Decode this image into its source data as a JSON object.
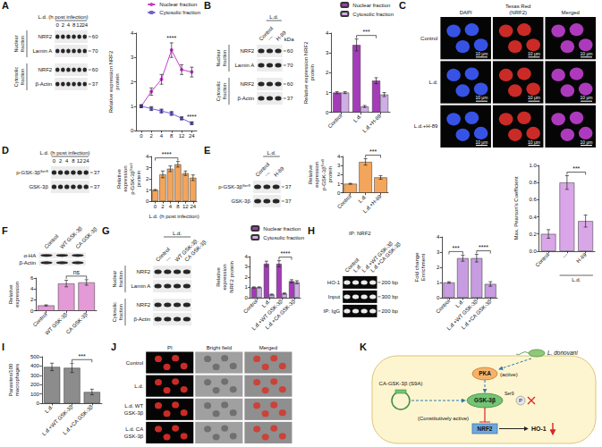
{
  "chart_data": [
    {
      "panel": "A",
      "type": "line",
      "categories": [
        "0",
        "2",
        "4",
        "8",
        "12",
        "24"
      ],
      "ylabel": "Relative expression NRF2 protein",
      "ylim": [
        0,
        4
      ],
      "yticks": [
        0,
        1,
        2,
        3,
        4
      ],
      "legend": "top-right",
      "series": [
        {
          "name": "Nuclear fraction",
          "color": "#c13fc9",
          "marker": "circle",
          "values": [
            1,
            1.6,
            2.1,
            3.3,
            2.5,
            2.4
          ],
          "errors": [
            0.05,
            0.15,
            0.2,
            0.3,
            0.2,
            0.2
          ]
        },
        {
          "name": "Cytosolic fraction",
          "color": "#6f62d2",
          "marker": "square",
          "values": [
            1,
            0.9,
            0.8,
            0.7,
            0.5,
            0.3
          ],
          "errors": [
            0.05,
            0.08,
            0.08,
            0.08,
            0.06,
            0.05
          ]
        }
      ],
      "annotations": [
        {
          "text": "****",
          "category": "8",
          "series": "Nuclear fraction"
        },
        {
          "text": "****",
          "category": "24",
          "series": "Cytosolic fraction"
        }
      ]
    },
    {
      "panel": "B",
      "type": "bar",
      "categories": [
        "Control",
        "L.d.",
        "L.d.+H-89"
      ],
      "ylabel": "Relative expression NRF2 protein",
      "ylim": [
        0,
        4
      ],
      "yticks": [
        0,
        1,
        2,
        3,
        4
      ],
      "legend": "top-right",
      "series": [
        {
          "name": "Nuclear fraction",
          "color": "#a43bb8",
          "values": [
            1,
            3.4,
            1.6
          ],
          "errors": [
            0.05,
            0.3,
            0.15
          ]
        },
        {
          "name": "Cytosolic fraction",
          "color": "#cfaee6",
          "values": [
            1,
            0.3,
            0.9
          ],
          "errors": [
            0.05,
            0.05,
            0.1
          ]
        }
      ],
      "annotations": [
        {
          "text": "***",
          "from": 1,
          "to": 2,
          "series": "Nuclear fraction"
        }
      ]
    },
    {
      "panel": "C",
      "type": "bar",
      "categories": [
        "Control",
        "---",
        "H-89"
      ],
      "x_groups": [
        {
          "label": "L.d.",
          "from": 1,
          "to": 2
        }
      ],
      "ylabel": "Max. Pearson's Coefficient",
      "ylim": [
        0,
        1
      ],
      "yticks": [
        {
          "value": 0,
          "label": "0.0"
        },
        0.2,
        0.4,
        0.6,
        0.8,
        {
          "value": 1,
          "label": "1.0"
        }
      ],
      "values": [
        0.2,
        0.8,
        0.35
      ],
      "errors": [
        0.05,
        0.08,
        0.07
      ],
      "color": "#d9a6e8",
      "annotations": [
        {
          "text": "***",
          "from": 1,
          "to": 2
        }
      ]
    },
    {
      "panel": "D",
      "type": "bar",
      "categories": [
        "0",
        "2",
        "4",
        "8",
        "12",
        "24"
      ],
      "xlabel": "L.d. (h post infection)",
      "ylabel": [
        {
          "t": "Relative expression p-GSK-3β"
        },
        {
          "t": "Ser9",
          "sup": true
        },
        {
          "t": " protein"
        }
      ],
      "ylim": [
        0,
        4
      ],
      "yticks": [
        0,
        1,
        2,
        3,
        4
      ],
      "values": [
        1,
        2.4,
        2.9,
        3.3,
        2.5,
        2.1
      ],
      "errors": [
        0.05,
        0.3,
        0.25,
        0.25,
        0.2,
        0.25
      ],
      "color": "#f3a55b",
      "annotations": [
        {
          "text": "****",
          "from": 0,
          "to": 3
        }
      ]
    },
    {
      "panel": "E",
      "type": "bar",
      "categories": [
        "Control",
        "L.d.",
        "L.d.+H-89"
      ],
      "ylabel": [
        {
          "t": "Relative expression p-GSK-3β"
        },
        {
          "t": "Ser9",
          "sup": true
        },
        {
          "t": " protein"
        }
      ],
      "ylim": [
        0,
        4
      ],
      "yticks": [
        0,
        1,
        2,
        3,
        4
      ],
      "values": [
        1,
        3.4,
        1.7
      ],
      "errors": [
        0.05,
        0.35,
        0.2
      ],
      "color": "#f3a55b",
      "annotations": [
        {
          "text": "***",
          "from": 1,
          "to": 2
        }
      ]
    },
    {
      "panel": "F",
      "type": "bar",
      "categories": [
        "Control",
        "WT GSK-3β",
        "CA GSK-3β"
      ],
      "ylabel": "Relative expression",
      "ylim": [
        0,
        6
      ],
      "yticks": [
        0,
        2,
        4,
        6
      ],
      "values": [
        1,
        5,
        5.2
      ],
      "errors": [
        0.1,
        0.6,
        0.5
      ],
      "color": "#e39ad6",
      "annotations": [
        {
          "text": "ns",
          "from": 1,
          "to": 2
        }
      ]
    },
    {
      "panel": "G",
      "type": "bar",
      "categories": [
        "Control",
        "L.d.",
        "L.d.+WT GSK-3β",
        "L.d.+CA GSK-3β"
      ],
      "ylabel": "Relative expression NRF2 protein",
      "ylim": [
        0,
        4
      ],
      "yticks": [
        0,
        1,
        2,
        3,
        4
      ],
      "legend": "top-right",
      "series": [
        {
          "name": "Nuclear fraction",
          "color": "#a43bb8",
          "values": [
            1,
            3.3,
            3.3,
            1.6
          ],
          "errors": [
            0.05,
            0.25,
            0.3,
            0.15
          ]
        },
        {
          "name": "Cytosolic fraction",
          "color": "#cfaee6",
          "values": [
            1,
            0.3,
            0.4,
            1.5
          ],
          "errors": [
            0.05,
            0.05,
            0.06,
            0.15
          ]
        }
      ],
      "annotations": [
        {
          "text": "****",
          "from": 2,
          "to": 3,
          "series": "Nuclear fraction"
        }
      ]
    },
    {
      "panel": "H",
      "type": "bar",
      "categories": [
        "Control",
        "L.d.",
        "L.d.+WT GSK-3β",
        "L.d.+CA GSK-3β"
      ],
      "ylabel": "Fold change Enrichment",
      "ylim": [
        0,
        4
      ],
      "yticks": [
        0,
        1,
        2,
        3,
        4
      ],
      "values": [
        1,
        2.6,
        2.6,
        0.9
      ],
      "errors": [
        0.05,
        0.2,
        0.25,
        0.15
      ],
      "color": "#c79ce0",
      "annotations": [
        {
          "text": "***",
          "from": 0,
          "to": 1
        },
        {
          "text": "****",
          "from": 2,
          "to": 3
        }
      ]
    },
    {
      "panel": "I",
      "type": "bar",
      "categories": [
        "L.d.",
        "L.d.+WT GSK-3β",
        "L.d.+CA GSK-3β"
      ],
      "ylabel": "Parasites/100 macrophages",
      "ylim": [
        0,
        500
      ],
      "yticks": [
        0,
        100,
        200,
        300,
        400,
        500
      ],
      "values": [
        390,
        380,
        120
      ],
      "errors": [
        40,
        50,
        30
      ],
      "color": "#8c8c8c",
      "annotations": [
        {
          "text": "***",
          "from": 1,
          "to": 2
        }
      ]
    }
  ],
  "blots": [
    {
      "panel": "A",
      "type": "blot",
      "lanes": [
        {
          "group": "L.d. (h post infection)",
          "labels": [
            "0",
            "2",
            "4",
            "8",
            "12",
            "24"
          ]
        }
      ],
      "sections": [
        {
          "label": "Nuclear fraction",
          "rows": [
            {
              "label": "NRF2",
              "kda": "60"
            },
            {
              "label": "Lamin A",
              "kda": "70"
            }
          ]
        },
        {
          "label": "Cytosolic fraction",
          "rows": [
            {
              "label": "NRF2",
              "kda": "60"
            },
            {
              "label": "β-Actin",
              "kda": "37"
            }
          ]
        }
      ]
    },
    {
      "panel": "B",
      "type": "blot",
      "kda_title": "kDa",
      "lanes": [
        {
          "labels": [
            "Control"
          ]
        },
        {
          "group": "L.d.",
          "labels": [
            "---",
            "H-89"
          ]
        }
      ],
      "sections": [
        {
          "label": "Nuclear fraction",
          "rows": [
            {
              "label": "NRF2",
              "kda": "60"
            },
            {
              "label": "Lamin A",
              "kda": "70"
            }
          ]
        },
        {
          "label": "Cytosolic fraction",
          "rows": [
            {
              "label": "NRF2",
              "kda": "60"
            },
            {
              "label": "β-Actin",
              "kda": "37"
            }
          ]
        }
      ]
    },
    {
      "panel": "D",
      "type": "blot",
      "lanes": [
        {
          "group": "L.d. (h post infection)",
          "labels": [
            "0",
            "2",
            "4",
            "8",
            "12",
            "24"
          ]
        }
      ],
      "rows": [
        {
          "label": [
            {
              "t": "p-GSK-3β"
            },
            {
              "t": "Ser9",
              "sup": true
            }
          ],
          "kda": "37"
        },
        {
          "label": "GSK-3β",
          "kda": "37"
        }
      ]
    },
    {
      "panel": "E",
      "type": "blot",
      "lanes": [
        {
          "labels": [
            "Control"
          ]
        },
        {
          "group": "L.d.",
          "labels": [
            "---",
            "H-89"
          ]
        }
      ],
      "rows": [
        {
          "label": [
            {
              "t": "p-GSK-3β"
            },
            {
              "t": "Ser9",
              "sup": true
            }
          ],
          "kda": "37"
        },
        {
          "label": "GSK-3β",
          "kda": "37"
        }
      ]
    },
    {
      "panel": "F",
      "type": "blot",
      "lanes": [
        {
          "labels": [
            "Control",
            "WT GSK-3β",
            "CA GSK-3β"
          ]
        }
      ],
      "rows": [
        {
          "label": "α-HA"
        },
        {
          "label": "β-Actin"
        }
      ]
    },
    {
      "panel": "G",
      "type": "blot",
      "lanes": [
        {
          "labels": [
            "Control"
          ]
        },
        {
          "group": "L.d.",
          "labels": [
            "---",
            "WT GSK-3β",
            "CA GSK-3β"
          ]
        }
      ],
      "sections": [
        {
          "label": "Nuclear fraction",
          "rows": [
            {
              "label": "NRF2"
            },
            {
              "label": "Lamin A"
            }
          ]
        },
        {
          "label": "Cytosolic fraction",
          "rows": [
            {
              "label": "NRF2"
            },
            {
              "label": "β-Actin"
            }
          ]
        }
      ]
    },
    {
      "panel": "H",
      "type": "gel",
      "title": "IP: NRF2",
      "lanes": [
        {
          "labels": [
            "Control",
            "L.d.",
            "L.d.+WT GSK-3β",
            "L.d.+CA GSK-3β"
          ]
        }
      ],
      "rows": [
        {
          "label": "HO-1",
          "kda": "200 bp"
        },
        {
          "label": "Input",
          "kda": "300 bp"
        },
        {
          "label": "IP: IgG",
          "kda": "200 bp"
        }
      ]
    }
  ],
  "images": [
    {
      "panel": "C",
      "columns": [
        "DAPI",
        "Texas Red (NRF2)",
        "Merged"
      ],
      "rows": [
        "Control",
        "L.d.",
        "L.d.+H-89"
      ],
      "scale_bar": "10 μm"
    },
    {
      "panel": "J",
      "columns": [
        "PI",
        "Bright field",
        "Merged"
      ],
      "rows": [
        "Control",
        "L.d.",
        "L.d. WT GSK-3β",
        "L.d. CA GSK-3β"
      ]
    }
  ],
  "diagram": {
    "panel": "K",
    "pathogen": "L. donovani",
    "kinase": "PKA",
    "kinase_state": "(active)",
    "plasmid": "CA-GSK-3β (S9A)",
    "target": "GSK-3β",
    "site": "Ser9",
    "phospho": "P",
    "target_state": "(Constitutively active)",
    "factor": "NRF2",
    "product": "HO-1"
  }
}
